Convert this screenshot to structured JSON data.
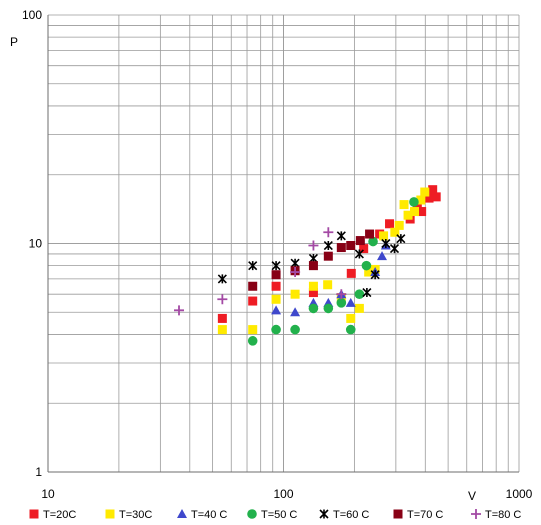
{
  "chart_data": {
    "type": "scatter",
    "title": "",
    "xlabel": "V",
    "ylabel": "P",
    "xscale": "log",
    "yscale": "log",
    "xlim": [
      10,
      1000
    ],
    "ylim": [
      1,
      100
    ],
    "x_tick_labels": [
      "10",
      "100",
      "1000"
    ],
    "y_tick_labels": [
      "1",
      "10",
      "100"
    ],
    "grid": true,
    "legend_position": "bottom",
    "series": [
      {
        "name": "T=20C",
        "color": "#ee1c24",
        "marker": "square",
        "points": [
          [
            55,
            4.7
          ],
          [
            74,
            5.6
          ],
          [
            93,
            6.5
          ],
          [
            134,
            6.1
          ],
          [
            194,
            7.4
          ],
          [
            219,
            9.5
          ],
          [
            256,
            11
          ],
          [
            282,
            12.2
          ],
          [
            345,
            12.8
          ],
          [
            370,
            14.2
          ],
          [
            386,
            13.8
          ],
          [
            415,
            15.8
          ],
          [
            430,
            17.2
          ],
          [
            445,
            16
          ]
        ]
      },
      {
        "name": "T=30C",
        "color": "#ffea00",
        "marker": "square",
        "points": [
          [
            55,
            4.2
          ],
          [
            74,
            4.2
          ],
          [
            93,
            5.7
          ],
          [
            112,
            6.0
          ],
          [
            134,
            6.5
          ],
          [
            154,
            6.6
          ],
          [
            176,
            5.8
          ],
          [
            193,
            4.7
          ],
          [
            210,
            5.2
          ],
          [
            230,
            7.5
          ],
          [
            245,
            7.7
          ],
          [
            266,
            10.8
          ],
          [
            297,
            11.2
          ],
          [
            310,
            12
          ],
          [
            325,
            14.8
          ],
          [
            338,
            13.3
          ],
          [
            360,
            13.8
          ],
          [
            383,
            15.5
          ],
          [
            398,
            16.8
          ]
        ]
      },
      {
        "name": "T=40 C",
        "color": "#3f48cc",
        "marker": "triangle",
        "points": [
          [
            93,
            5.1
          ],
          [
            112,
            5.0
          ],
          [
            134,
            5.5
          ],
          [
            155,
            5.5
          ],
          [
            176,
            6.0
          ],
          [
            193,
            5.5
          ],
          [
            245,
            7.5
          ],
          [
            262,
            8.8
          ],
          [
            272,
            9.8
          ]
        ]
      },
      {
        "name": "T=50 C",
        "color": "#22b14c",
        "marker": "circle",
        "points": [
          [
            74,
            3.75
          ],
          [
            93,
            4.2
          ],
          [
            112,
            4.2
          ],
          [
            134,
            5.2
          ],
          [
            155,
            5.2
          ],
          [
            176,
            5.5
          ],
          [
            193,
            4.2
          ],
          [
            210,
            6.0
          ],
          [
            225,
            8.0
          ],
          [
            240,
            10.2
          ],
          [
            358,
            15.2
          ]
        ]
      },
      {
        "name": "T=60 C",
        "color": "#000000",
        "marker": "asterisk",
        "points": [
          [
            55,
            7.0
          ],
          [
            74,
            8.0
          ],
          [
            93,
            8.0
          ],
          [
            112,
            8.2
          ],
          [
            134,
            8.6
          ],
          [
            155,
            9.8
          ],
          [
            176,
            10.8
          ],
          [
            210,
            9.0
          ],
          [
            226,
            6.1
          ],
          [
            245,
            7.3
          ],
          [
            272,
            10.0
          ],
          [
            296,
            9.5
          ],
          [
            315,
            10.5
          ]
        ]
      },
      {
        "name": "T=70 C",
        "color": "#880015",
        "marker": "square",
        "points": [
          [
            74,
            6.5
          ],
          [
            93,
            7.3
          ],
          [
            112,
            7.6
          ],
          [
            134,
            8.0
          ],
          [
            155,
            8.8
          ],
          [
            176,
            9.6
          ],
          [
            193,
            9.8
          ],
          [
            212,
            10.3
          ],
          [
            232,
            11.0
          ]
        ]
      },
      {
        "name": "T=80 C",
        "color": "#a349a4",
        "marker": "plus",
        "points": [
          [
            36,
            5.1
          ],
          [
            55,
            5.7
          ],
          [
            112,
            7.5
          ],
          [
            134,
            9.8
          ],
          [
            155,
            11.2
          ],
          [
            176,
            6.0
          ]
        ]
      }
    ]
  }
}
